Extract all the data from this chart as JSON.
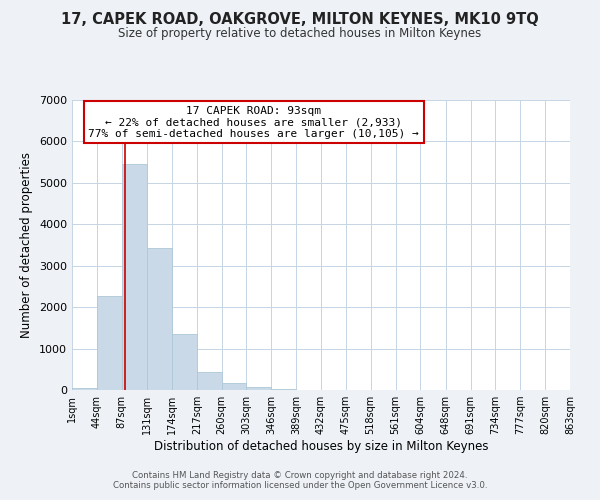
{
  "title": "17, CAPEK ROAD, OAKGROVE, MILTON KEYNES, MK10 9TQ",
  "subtitle": "Size of property relative to detached houses in Milton Keynes",
  "xlabel": "Distribution of detached houses by size in Milton Keynes",
  "ylabel": "Number of detached properties",
  "bar_color": "#c9d9e8",
  "bar_edge_color": "#aec8d8",
  "annotation_title": "17 CAPEK ROAD: 93sqm",
  "annotation_line1": "← 22% of detached houses are smaller (2,933)",
  "annotation_line2": "77% of semi-detached houses are larger (10,105) →",
  "marker_value": 93,
  "marker_color": "#cc0000",
  "bin_edges": [
    1,
    44,
    87,
    131,
    174,
    217,
    260,
    303,
    346,
    389,
    432,
    475,
    518,
    561,
    604,
    648,
    691,
    734,
    777,
    820,
    863
  ],
  "bar_heights": [
    50,
    2280,
    5460,
    3420,
    1350,
    440,
    160,
    80,
    30,
    10,
    0,
    0,
    0,
    0,
    0,
    0,
    0,
    0,
    0,
    0
  ],
  "ylim": [
    0,
    7000
  ],
  "yticks": [
    0,
    1000,
    2000,
    3000,
    4000,
    5000,
    6000,
    7000
  ],
  "tick_labels": [
    "1sqm",
    "44sqm",
    "87sqm",
    "131sqm",
    "174sqm",
    "217sqm",
    "260sqm",
    "303sqm",
    "346sqm",
    "389sqm",
    "432sqm",
    "475sqm",
    "518sqm",
    "561sqm",
    "604sqm",
    "648sqm",
    "691sqm",
    "734sqm",
    "777sqm",
    "820sqm",
    "863sqm"
  ],
  "bg_color": "#eef2f7",
  "plot_bg_color": "#ffffff",
  "grid_color": "#c5d5e5",
  "footer_line1": "Contains HM Land Registry data © Crown copyright and database right 2024.",
  "footer_line2": "Contains public sector information licensed under the Open Government Licence v3.0."
}
